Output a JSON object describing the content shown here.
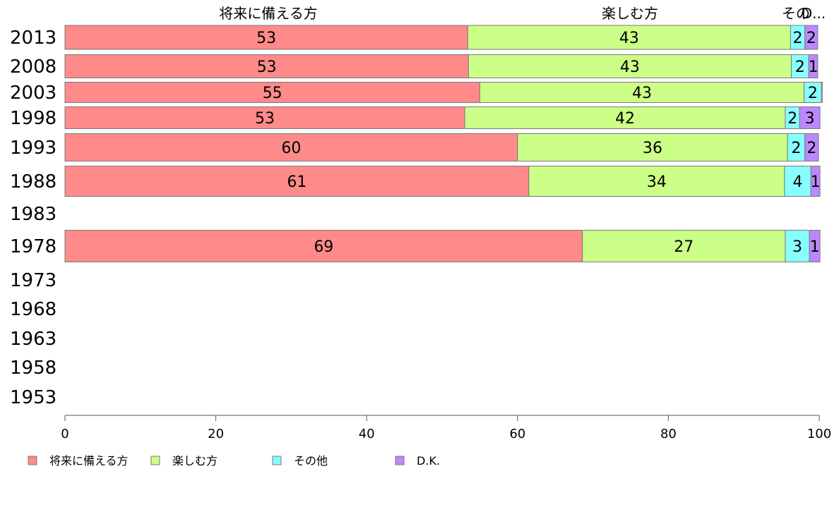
{
  "chart_data": {
    "type": "bar",
    "orientation": "horizontal",
    "stacked": true,
    "categories": [
      "2013",
      "2008",
      "2003",
      "1998",
      "1993",
      "1988",
      "1983",
      "1978",
      "1973",
      "1968",
      "1963",
      "1958",
      "1953"
    ],
    "series": [
      {
        "name": "将来に備える方",
        "color": "#ff8a8a",
        "values": [
          53.4,
          53.5,
          55,
          53,
          60,
          61.5,
          null,
          68.6,
          null,
          null,
          null,
          null,
          null
        ]
      },
      {
        "name": "楽しむ方",
        "color": "#ccff88",
        "values": [
          42.8,
          42.8,
          43,
          42.5,
          35.8,
          33.9,
          null,
          26.9,
          null,
          null,
          null,
          null,
          null
        ]
      },
      {
        "name": "その他",
        "color": "#88ffff",
        "values": [
          1.9,
          2.3,
          2.3,
          1.9,
          2.3,
          3.5,
          null,
          3.2,
          null,
          null,
          null,
          null,
          null
        ]
      },
      {
        "name": "D.K.",
        "color": "#bb88ff",
        "values": [
          1.7,
          1.2,
          0.1,
          2.7,
          1.8,
          1.2,
          null,
          1.4,
          null,
          null,
          null,
          null,
          null
        ]
      }
    ],
    "data_labels": [
      [
        "53",
        "43",
        "2",
        "2"
      ],
      [
        "53",
        "43",
        "2",
        "1"
      ],
      [
        "55",
        "43",
        "2",
        ""
      ],
      [
        "53",
        "42",
        "2",
        "3"
      ],
      [
        "60",
        "36",
        "2",
        "2"
      ],
      [
        "61",
        "34",
        "4",
        "1"
      ],
      [
        "",
        "",
        "",
        ""
      ],
      [
        "69",
        "27",
        "3",
        "1"
      ],
      [
        "",
        "",
        "",
        ""
      ],
      [
        "",
        "",
        "",
        ""
      ],
      [
        "",
        "",
        "",
        ""
      ],
      [
        "",
        "",
        "",
        ""
      ],
      [
        "",
        "",
        "",
        ""
      ]
    ],
    "top_labels": [
      "将来に備える方",
      "楽しむ方",
      "その",
      "D..."
    ],
    "xlim": [
      0,
      100
    ],
    "xticks": [
      "0",
      "20",
      "40",
      "60",
      "80",
      "100"
    ],
    "legend_position": "bottom-left",
    "grid": false
  }
}
